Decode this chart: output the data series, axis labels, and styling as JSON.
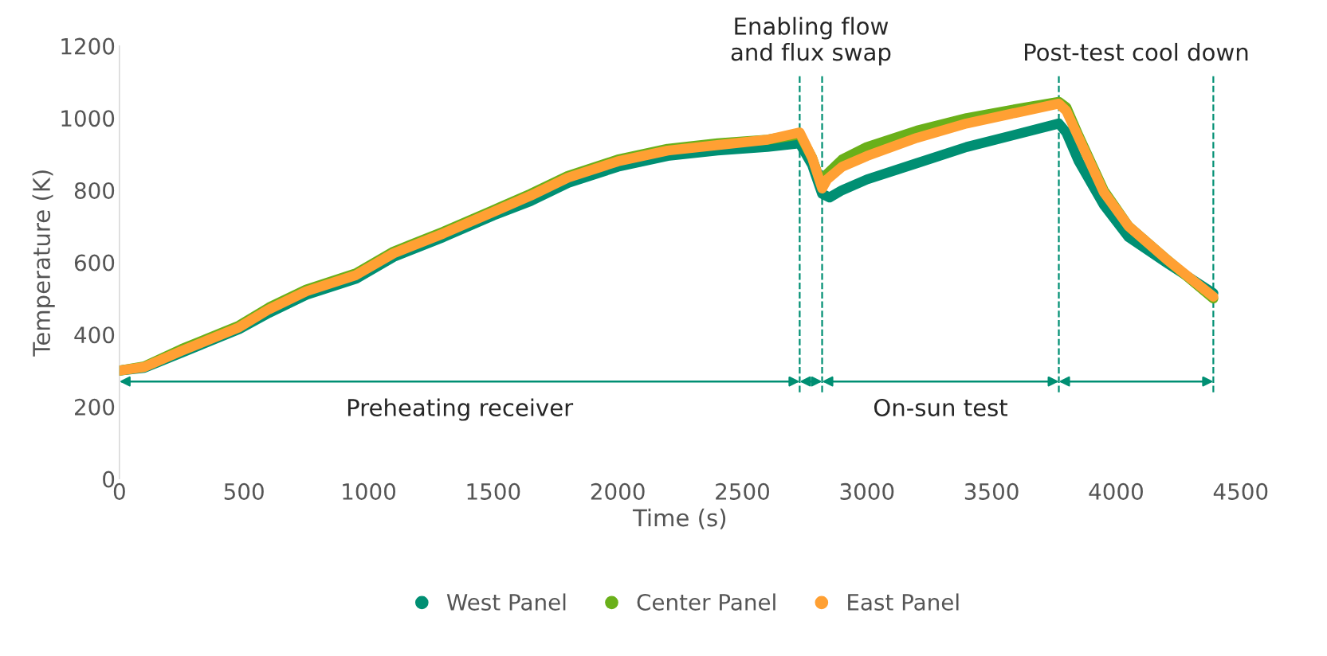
{
  "chart_data": {
    "type": "line",
    "xlabel": "Time (s)",
    "ylabel": "Temperature (K)",
    "xlim": [
      0,
      4500
    ],
    "ylim": [
      0,
      1200
    ],
    "xticks": [
      0,
      500,
      1000,
      1500,
      2000,
      2500,
      3000,
      3500,
      4000,
      4500
    ],
    "yticks": [
      0,
      200,
      400,
      600,
      800,
      1000,
      1200
    ],
    "grid": false,
    "legend": "bottom",
    "line_style": "solid",
    "series": [
      {
        "name": "West Panel",
        "color": "#008f73",
        "x": [
          0,
          100,
          250,
          480,
          600,
          750,
          950,
          1100,
          1300,
          1500,
          1650,
          1800,
          2000,
          2200,
          2400,
          2600,
          2730,
          2780,
          2820,
          2850,
          2900,
          3000,
          3200,
          3400,
          3600,
          3770,
          3800,
          3850,
          3950,
          4050,
          4200,
          4390
        ],
        "values": [
          300,
          308,
          350,
          415,
          460,
          510,
          555,
          615,
          670,
          730,
          770,
          820,
          865,
          895,
          910,
          920,
          930,
          870,
          790,
          780,
          800,
          830,
          875,
          920,
          955,
          985,
          960,
          880,
          760,
          670,
          600,
          515
        ]
      },
      {
        "name": "Center Panel",
        "color": "#6ab01a",
        "x": [
          0,
          100,
          250,
          480,
          600,
          750,
          950,
          1100,
          1300,
          1500,
          1650,
          1800,
          2000,
          2200,
          2400,
          2600,
          2730,
          2780,
          2820,
          2840,
          2900,
          3000,
          3200,
          3400,
          3600,
          3770,
          3800,
          3850,
          3950,
          4050,
          4200,
          4390
        ],
        "values": [
          300,
          312,
          360,
          425,
          475,
          525,
          570,
          630,
          685,
          745,
          790,
          840,
          885,
          915,
          930,
          940,
          955,
          890,
          810,
          845,
          885,
          920,
          965,
          1000,
          1025,
          1045,
          1030,
          950,
          800,
          700,
          610,
          500
        ]
      },
      {
        "name": "East Panel",
        "color": "#ffa033",
        "x": [
          0,
          100,
          250,
          480,
          600,
          750,
          950,
          1100,
          1300,
          1500,
          1650,
          1800,
          2000,
          2200,
          2400,
          2600,
          2730,
          2780,
          2820,
          2840,
          2900,
          3000,
          3200,
          3400,
          3600,
          3770,
          3800,
          3850,
          3950,
          4050,
          4200,
          4390
        ],
        "values": [
          300,
          310,
          355,
          420,
          470,
          520,
          565,
          625,
          680,
          740,
          785,
          835,
          880,
          910,
          925,
          940,
          960,
          890,
          805,
          830,
          865,
          895,
          945,
          985,
          1015,
          1040,
          1020,
          945,
          795,
          700,
          610,
          505
        ]
      }
    ],
    "ref_lines": [
      {
        "axis": "x",
        "value": 2730,
        "color": "#008f73",
        "line_style": "dashed"
      },
      {
        "axis": "x",
        "value": 2820,
        "color": "#008f73",
        "line_style": "dashed"
      },
      {
        "axis": "x",
        "value": 3770,
        "color": "#008f73",
        "line_style": "dashed"
      },
      {
        "axis": "x",
        "value": 4390,
        "color": "#008f73",
        "line_style": "dashed"
      }
    ],
    "annotations": [
      "Preheating receiver",
      "Enabling flow\nand flux swap",
      "On-sun test",
      "Post-test cool down"
    ]
  }
}
